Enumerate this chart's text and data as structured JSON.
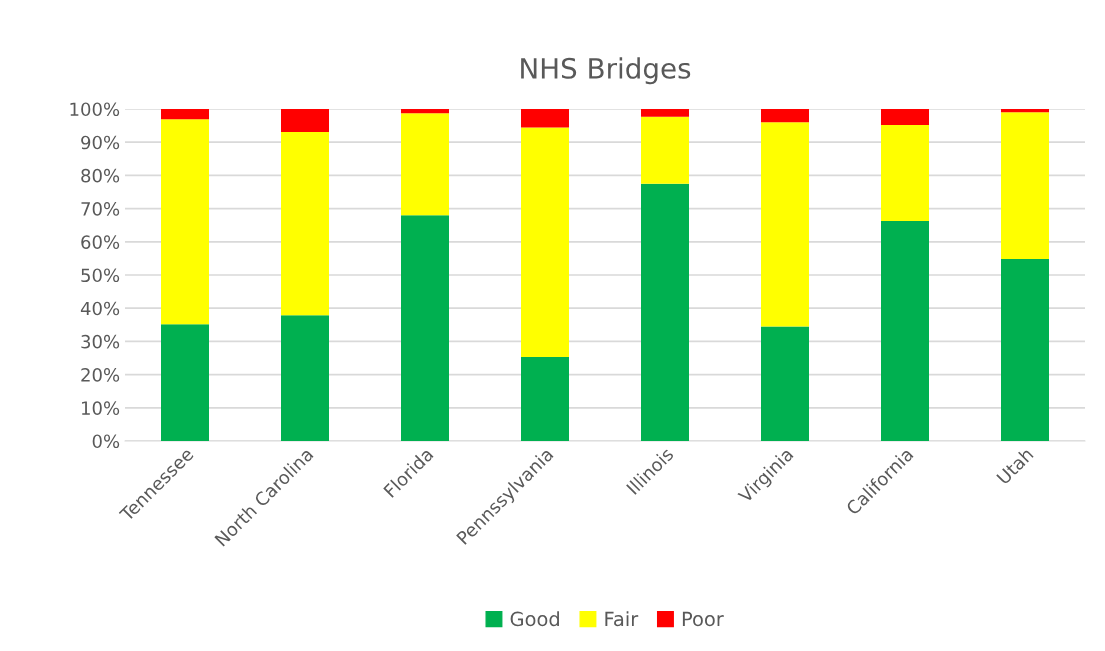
{
  "chart_data": {
    "type": "bar",
    "title": "NHS Bridges",
    "stacked": true,
    "categories": [
      "Tennessee",
      "North Carolina",
      "Florida",
      "Pennssylvania",
      "Illinois",
      "Virginia",
      "California",
      "Utah"
    ],
    "series": [
      {
        "name": "Good",
        "color": "#00b050",
        "values": [
          35.2,
          37.9,
          68.0,
          25.3,
          77.5,
          34.5,
          66.3,
          54.8
        ]
      },
      {
        "name": "Fair",
        "color": "#ffff00",
        "values": [
          61.7,
          55.2,
          30.7,
          69.1,
          20.2,
          61.5,
          28.9,
          44.2
        ]
      },
      {
        "name": "Poor",
        "color": "#ff0000",
        "values": [
          3.1,
          6.9,
          1.3,
          5.6,
          2.3,
          4.0,
          4.8,
          1.0
        ]
      }
    ],
    "ylim": [
      0,
      100
    ],
    "yticks": [
      {
        "value": 0,
        "label": "0%"
      },
      {
        "value": 10,
        "label": "10%"
      },
      {
        "value": 20,
        "label": "20%"
      },
      {
        "value": 30,
        "label": "30%"
      },
      {
        "value": 40,
        "label": "40%"
      },
      {
        "value": 50,
        "label": "50%"
      },
      {
        "value": 60,
        "label": "60%"
      },
      {
        "value": 70,
        "label": "70%"
      },
      {
        "value": 80,
        "label": "80%"
      },
      {
        "value": 90,
        "label": "90%"
      },
      {
        "value": 100,
        "label": "100%"
      }
    ],
    "grid": "y",
    "legend": "bottom"
  }
}
